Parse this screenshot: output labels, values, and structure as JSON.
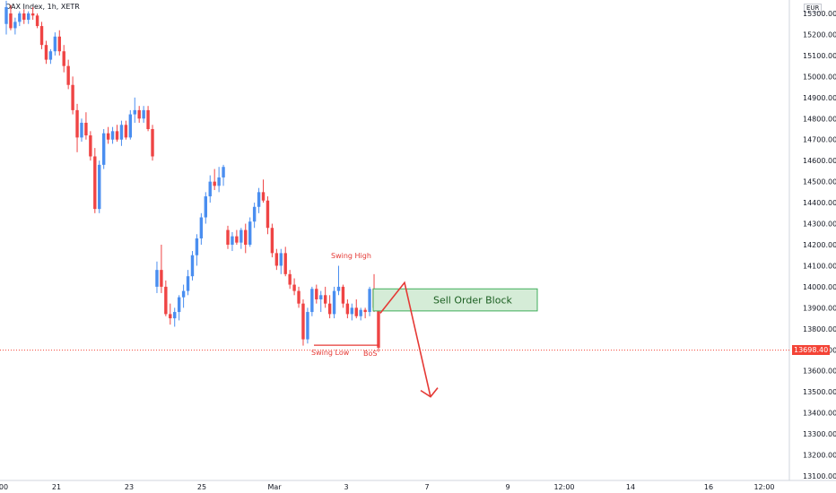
{
  "header": {
    "symbol": "DAX Index, 1h, XETR",
    "currency": "EUR"
  },
  "colors": {
    "up": "#4a8ef0",
    "down": "#ef4444",
    "annotation": "#e53935",
    "block_fill": "#d5ecd7",
    "block_border": "#3fae5b"
  },
  "chart_data": {
    "type": "candlestick",
    "price_axis": {
      "ylim": [
        13050,
        15350
      ],
      "ticks": [
        15300,
        15200,
        15100,
        15000,
        14900,
        14800,
        14700,
        14600,
        14500,
        14400,
        14300,
        14200,
        14100,
        14000,
        13900,
        13800,
        13700,
        13600,
        13500,
        13400,
        13300,
        13200,
        13100
      ],
      "labels": [
        "15300.00",
        "15200.00",
        "15100.00",
        "15000.00",
        "14900.00",
        "14800.00",
        "14700.00",
        "14600.00",
        "14500.00",
        "14400.00",
        "14300.00",
        "14200.00",
        "14100.00",
        "14000.00",
        "13900.00",
        "13800.00",
        "13700.00",
        "13600.00",
        "13500.00",
        "13400.00",
        "13300.00",
        "13200.00",
        "13100.00"
      ]
    },
    "time_axis": {
      "labels": [
        "00",
        "21",
        "23",
        "25",
        "Mar",
        "3",
        "7",
        "9",
        "12:00",
        "14",
        "16",
        "12:00"
      ]
    },
    "last_price": "13698.40",
    "candles": [
      [
        15250,
        15360,
        15200,
        15330
      ],
      [
        15300,
        15340,
        15220,
        15230
      ],
      [
        15230,
        15280,
        15200,
        15260
      ],
      [
        15260,
        15310,
        15240,
        15300
      ],
      [
        15300,
        15320,
        15250,
        15270
      ],
      [
        15270,
        15310,
        15250,
        15300
      ],
      [
        15300,
        15330,
        15270,
        15290
      ],
      [
        15290,
        15300,
        15230,
        15240
      ],
      [
        15240,
        15260,
        15130,
        15150
      ],
      [
        15150,
        15170,
        15060,
        15080
      ],
      [
        15080,
        15130,
        15060,
        15120
      ],
      [
        15120,
        15210,
        15100,
        15190
      ],
      [
        15190,
        15220,
        15100,
        15120
      ],
      [
        15120,
        15150,
        15020,
        15050
      ],
      [
        15050,
        15080,
        14940,
        14960
      ],
      [
        14960,
        15000,
        14820,
        14840
      ],
      [
        14840,
        14870,
        14640,
        14710
      ],
      [
        14710,
        14800,
        14690,
        14780
      ],
      [
        14780,
        14830,
        14700,
        14720
      ],
      [
        14720,
        14740,
        14600,
        14620
      ],
      [
        14620,
        14660,
        14350,
        14370
      ],
      [
        14370,
        14600,
        14350,
        14580
      ],
      [
        14580,
        14750,
        14560,
        14730
      ],
      [
        14730,
        14760,
        14680,
        14700
      ],
      [
        14700,
        14760,
        14680,
        14740
      ],
      [
        14740,
        14770,
        14690,
        14700
      ],
      [
        14700,
        14790,
        14670,
        14770
      ],
      [
        14770,
        14790,
        14700,
        14710
      ],
      [
        14710,
        14840,
        14700,
        14820
      ],
      [
        14820,
        14900,
        14780,
        14840
      ],
      [
        14840,
        14860,
        14780,
        14800
      ],
      [
        14800,
        14860,
        14780,
        14840
      ],
      [
        14840,
        14860,
        14740,
        14750
      ],
      [
        14750,
        14770,
        14600,
        14620
      ],
      [
        14000,
        14120,
        13970,
        14080
      ],
      [
        14080,
        14200,
        13970,
        14000
      ],
      [
        14000,
        14030,
        13860,
        13870
      ],
      [
        13870,
        13920,
        13820,
        13850
      ],
      [
        13850,
        13900,
        13810,
        13880
      ],
      [
        13880,
        13960,
        13840,
        13950
      ],
      [
        13950,
        14010,
        13900,
        13980
      ],
      [
        13980,
        14080,
        13960,
        14050
      ],
      [
        14050,
        14170,
        14030,
        14150
      ],
      [
        14150,
        14250,
        14100,
        14230
      ],
      [
        14230,
        14350,
        14200,
        14330
      ],
      [
        14330,
        14450,
        14300,
        14430
      ],
      [
        14430,
        14530,
        14400,
        14500
      ],
      [
        14500,
        14560,
        14460,
        14480
      ],
      [
        14480,
        14570,
        14450,
        14520
      ],
      [
        14520,
        14580,
        14480,
        14570
      ],
      [
        14270,
        14290,
        14180,
        14200
      ],
      [
        14200,
        14260,
        14170,
        14240
      ],
      [
        14240,
        14270,
        14200,
        14210
      ],
      [
        14210,
        14280,
        14180,
        14270
      ],
      [
        14270,
        14300,
        14160,
        14200
      ],
      [
        14200,
        14330,
        14190,
        14310
      ],
      [
        14310,
        14400,
        14280,
        14380
      ],
      [
        14380,
        14470,
        14350,
        14450
      ],
      [
        14450,
        14510,
        14400,
        14410
      ],
      [
        14410,
        14430,
        14250,
        14280
      ],
      [
        14280,
        14300,
        14140,
        14160
      ],
      [
        14160,
        14180,
        14080,
        14100
      ],
      [
        14100,
        14180,
        14060,
        14160
      ],
      [
        14160,
        14190,
        14050,
        14060
      ],
      [
        14060,
        14080,
        13990,
        14010
      ],
      [
        14010,
        14040,
        13960,
        13980
      ],
      [
        13980,
        14000,
        13900,
        13920
      ],
      [
        13920,
        13940,
        13720,
        13750
      ],
      [
        13750,
        13900,
        13730,
        13880
      ],
      [
        13880,
        14000,
        13860,
        13990
      ],
      [
        13990,
        14010,
        13920,
        13940
      ],
      [
        13940,
        13980,
        13880,
        13960
      ],
      [
        13960,
        14000,
        13900,
        13920
      ],
      [
        13920,
        13960,
        13850,
        13870
      ],
      [
        13870,
        14000,
        13850,
        13980
      ],
      [
        13980,
        14100,
        13960,
        14000
      ],
      [
        14000,
        14010,
        13900,
        13920
      ],
      [
        13920,
        13940,
        13850,
        13870
      ],
      [
        13870,
        13920,
        13840,
        13900
      ],
      [
        13900,
        13940,
        13850,
        13860
      ],
      [
        13860,
        13900,
        13840,
        13890
      ],
      [
        13890,
        13900,
        13850,
        13880
      ],
      [
        13880,
        14000,
        13860,
        13990
      ],
      [
        13990,
        14060,
        13880,
        13900
      ],
      [
        13900,
        13910,
        13690,
        13710
      ]
    ],
    "annotations": {
      "labels": [
        "Swing High",
        "Swing Low",
        "BoS",
        "Sell Order Block"
      ],
      "sell_order_block": {
        "price_top": 13990,
        "price_bottom": 13885
      },
      "swing_low_price": 13722,
      "forecast_path": [
        13900,
        13960,
        13400
      ]
    }
  }
}
